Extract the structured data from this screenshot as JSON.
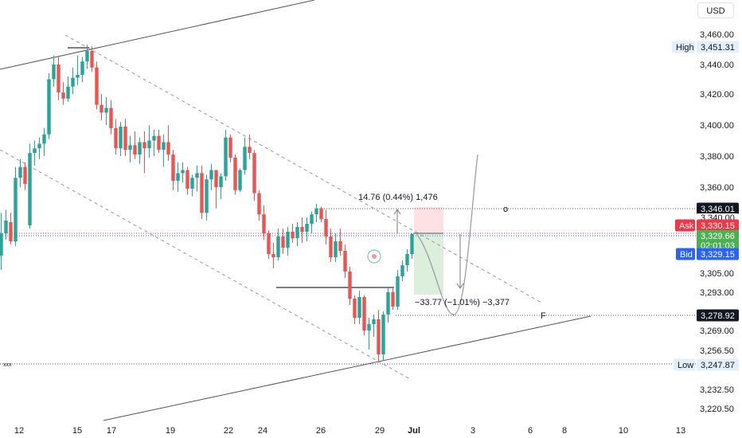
{
  "currency": "USD",
  "chart_data": {
    "type": "candlestick",
    "y_ticks": [
      3460,
      3440,
      3420,
      3400,
      3380,
      3360,
      3340,
      3305,
      3293,
      3269,
      3256.5,
      3232.5,
      3220.5
    ],
    "y_tick_labels": [
      "3,460.00",
      "3,440.00",
      "3,420.00",
      "3,400.00",
      "3,380.00",
      "3,360.00",
      "3,340.00",
      "3,305.00",
      "3,293.00",
      "3,269.00",
      "3,256.50",
      "3,232.50",
      "3,220.50"
    ],
    "x_ticks": [
      "12",
      "15",
      "17",
      "19",
      "22",
      "24",
      "26",
      "29",
      "Jul",
      "3",
      "6",
      "8",
      "10",
      "13"
    ],
    "candles": [
      [
        3316,
        3343,
        3307,
        3330
      ],
      [
        3330,
        3345,
        3326,
        3338
      ],
      [
        3337,
        3343,
        3323,
        3325
      ],
      [
        3325,
        3373,
        3322,
        3366
      ],
      [
        3366,
        3378,
        3360,
        3373
      ],
      [
        3373,
        3376,
        3358,
        3362
      ],
      [
        3335,
        3388,
        3333,
        3382
      ],
      [
        3382,
        3390,
        3374,
        3385
      ],
      [
        3385,
        3392,
        3378,
        3388
      ],
      [
        3388,
        3398,
        3380,
        3394
      ],
      [
        3394,
        3434,
        3391,
        3430
      ],
      [
        3430,
        3446,
        3425,
        3440
      ],
      [
        3440,
        3445,
        3416,
        3421
      ],
      [
        3421,
        3428,
        3413,
        3417
      ],
      [
        3417,
        3432,
        3415,
        3425
      ],
      [
        3425,
        3438,
        3420,
        3431
      ],
      [
        3431,
        3446,
        3426,
        3433
      ],
      [
        3433,
        3445,
        3428,
        3442
      ],
      [
        3442,
        3453,
        3437,
        3449
      ],
      [
        3449,
        3452,
        3435,
        3438
      ],
      [
        3438,
        3442,
        3410,
        3413
      ],
      [
        3413,
        3420,
        3403,
        3408
      ],
      [
        3408,
        3418,
        3400,
        3411
      ],
      [
        3411,
        3416,
        3394,
        3398
      ],
      [
        3398,
        3404,
        3381,
        3385
      ],
      [
        3385,
        3402,
        3380,
        3399
      ],
      [
        3399,
        3404,
        3380,
        3384
      ],
      [
        3384,
        3393,
        3376,
        3387
      ],
      [
        3387,
        3396,
        3378,
        3381
      ],
      [
        3381,
        3392,
        3375,
        3389
      ],
      [
        3389,
        3396,
        3369,
        3385
      ],
      [
        3385,
        3400,
        3379,
        3390
      ],
      [
        3390,
        3397,
        3380,
        3393
      ],
      [
        3393,
        3397,
        3382,
        3384
      ],
      [
        3384,
        3394,
        3373,
        3389
      ],
      [
        3389,
        3400,
        3377,
        3381
      ],
      [
        3381,
        3384,
        3358,
        3364
      ],
      [
        3364,
        3376,
        3357,
        3369
      ],
      [
        3369,
        3376,
        3363,
        3371
      ],
      [
        3371,
        3373,
        3355,
        3359
      ],
      [
        3359,
        3368,
        3354,
        3366
      ],
      [
        3366,
        3374,
        3357,
        3369
      ],
      [
        3369,
        3374,
        3339,
        3343
      ],
      [
        3343,
        3368,
        3338,
        3365
      ],
      [
        3365,
        3375,
        3358,
        3371
      ],
      [
        3371,
        3371,
        3346,
        3360
      ],
      [
        3360,
        3369,
        3352,
        3367
      ],
      [
        3367,
        3397,
        3364,
        3392
      ],
      [
        3392,
        3394,
        3376,
        3379
      ],
      [
        3379,
        3381,
        3355,
        3358
      ],
      [
        3358,
        3372,
        3357,
        3371
      ],
      [
        3371,
        3392,
        3368,
        3386
      ],
      [
        3386,
        3394,
        3378,
        3382
      ],
      [
        3382,
        3384,
        3351,
        3356
      ],
      [
        3356,
        3358,
        3338,
        3342
      ],
      [
        3342,
        3348,
        3326,
        3330
      ],
      [
        3330,
        3332,
        3314,
        3317
      ],
      [
        3317,
        3324,
        3308,
        3315
      ],
      [
        3315,
        3333,
        3313,
        3328
      ],
      [
        3328,
        3333,
        3317,
        3321
      ],
      [
        3321,
        3334,
        3316,
        3331
      ],
      [
        3331,
        3336,
        3324,
        3327
      ],
      [
        3327,
        3337,
        3322,
        3334
      ],
      [
        3334,
        3340,
        3324,
        3331
      ],
      [
        3331,
        3340,
        3325,
        3336
      ],
      [
        3336,
        3344,
        3330,
        3342
      ],
      [
        3342,
        3349,
        3337,
        3346
      ],
      [
        3346,
        3347,
        3337,
        3339
      ],
      [
        3339,
        3345,
        3323,
        3328
      ],
      [
        3328,
        3333,
        3312,
        3315
      ],
      [
        3315,
        3330,
        3312,
        3325
      ],
      [
        3325,
        3333,
        3316,
        3319
      ],
      [
        3319,
        3323,
        3302,
        3306
      ],
      [
        3306,
        3309,
        3285,
        3289
      ],
      [
        3289,
        3291,
        3273,
        3277
      ],
      [
        3277,
        3294,
        3273,
        3290
      ],
      [
        3290,
        3291,
        3266,
        3269
      ],
      [
        3269,
        3277,
        3257,
        3273
      ],
      [
        3273,
        3279,
        3265,
        3276
      ],
      [
        3276,
        3282,
        3249,
        3254
      ],
      [
        3254,
        3281,
        3250,
        3279
      ],
      [
        3279,
        3296,
        3274,
        3293
      ],
      [
        3293,
        3296,
        3282,
        3284
      ],
      [
        3284,
        3307,
        3282,
        3303
      ],
      [
        3303,
        3313,
        3300,
        3310
      ],
      [
        3310,
        3320,
        3306,
        3317
      ],
      [
        3317,
        3330,
        3314,
        3329.66
      ]
    ],
    "price_labels": {
      "high": {
        "tag": "High",
        "value": "3,451.31"
      },
      "level1": {
        "value": "3,346.01"
      },
      "level2": {
        "value": "3,340.00"
      },
      "ask": {
        "tag": "Ask",
        "value": "3,330.15"
      },
      "last": {
        "value": "3,329.66",
        "countdown": "02:01:03"
      },
      "bid": {
        "tag": "Bid",
        "value": "3,329.15"
      },
      "fib": {
        "value": "3,278.92"
      },
      "low": {
        "tag": "Low",
        "value": "3,247.87"
      }
    },
    "annotations": {
      "upper_measure": "14.76 (0.44%) 1,476",
      "lower_measure": "−33.77 (−1.01%) −3,377",
      "f_label": "F",
      "o_label": "o",
      "xxx_label": "xxx"
    },
    "colors": {
      "up": "#26a69a",
      "down": "#ef5350",
      "ask": "#f23645",
      "bid": "#2962ff",
      "last": "#4caf50",
      "dark_tag": "#131722"
    }
  }
}
